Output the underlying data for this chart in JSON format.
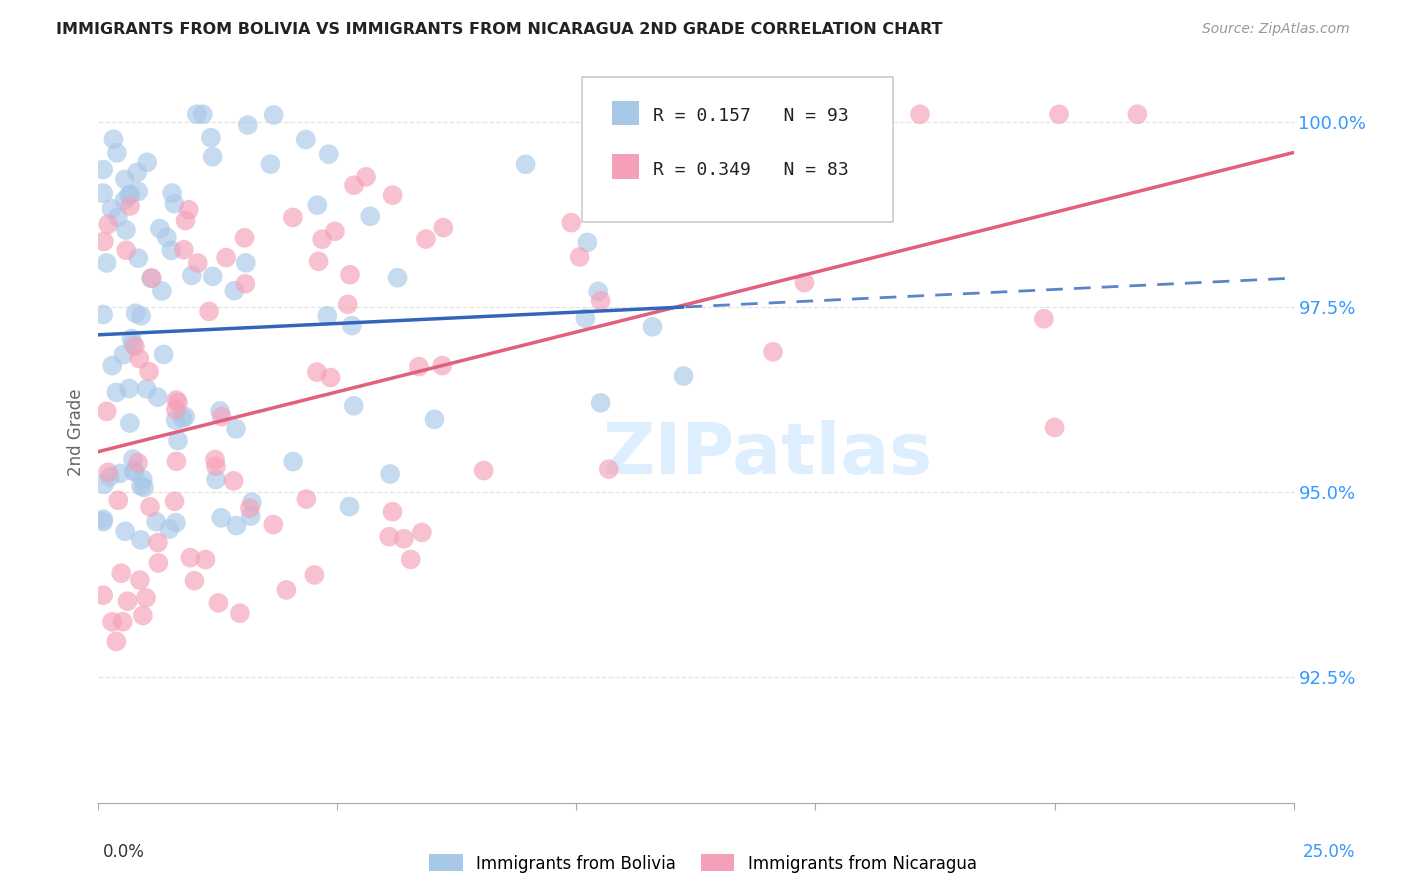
{
  "title": "IMMIGRANTS FROM BOLIVIA VS IMMIGRANTS FROM NICARAGUA 2ND GRADE CORRELATION CHART",
  "source": "Source: ZipAtlas.com",
  "ylabel": "2nd Grade",
  "ytick_values": [
    1.0,
    0.975,
    0.95,
    0.925
  ],
  "ytick_labels": [
    "100.0%",
    "97.5%",
    "95.0%",
    "92.5%"
  ],
  "xmin": 0.0,
  "xmax": 0.25,
  "ymin": 0.908,
  "ymax": 1.008,
  "bolivia_R": 0.157,
  "bolivia_N": 93,
  "nicaragua_R": 0.349,
  "nicaragua_N": 83,
  "bolivia_color": "#a8c8e8",
  "nicaragua_color": "#f4a0b8",
  "bolivia_line_color": "#3366bb",
  "nicaragua_line_color": "#e06080",
  "right_axis_color": "#3399ff",
  "grid_color": "#dddddd",
  "title_color": "#222222",
  "watermark_color": "#ddeeff",
  "watermark": "ZIPatlas"
}
